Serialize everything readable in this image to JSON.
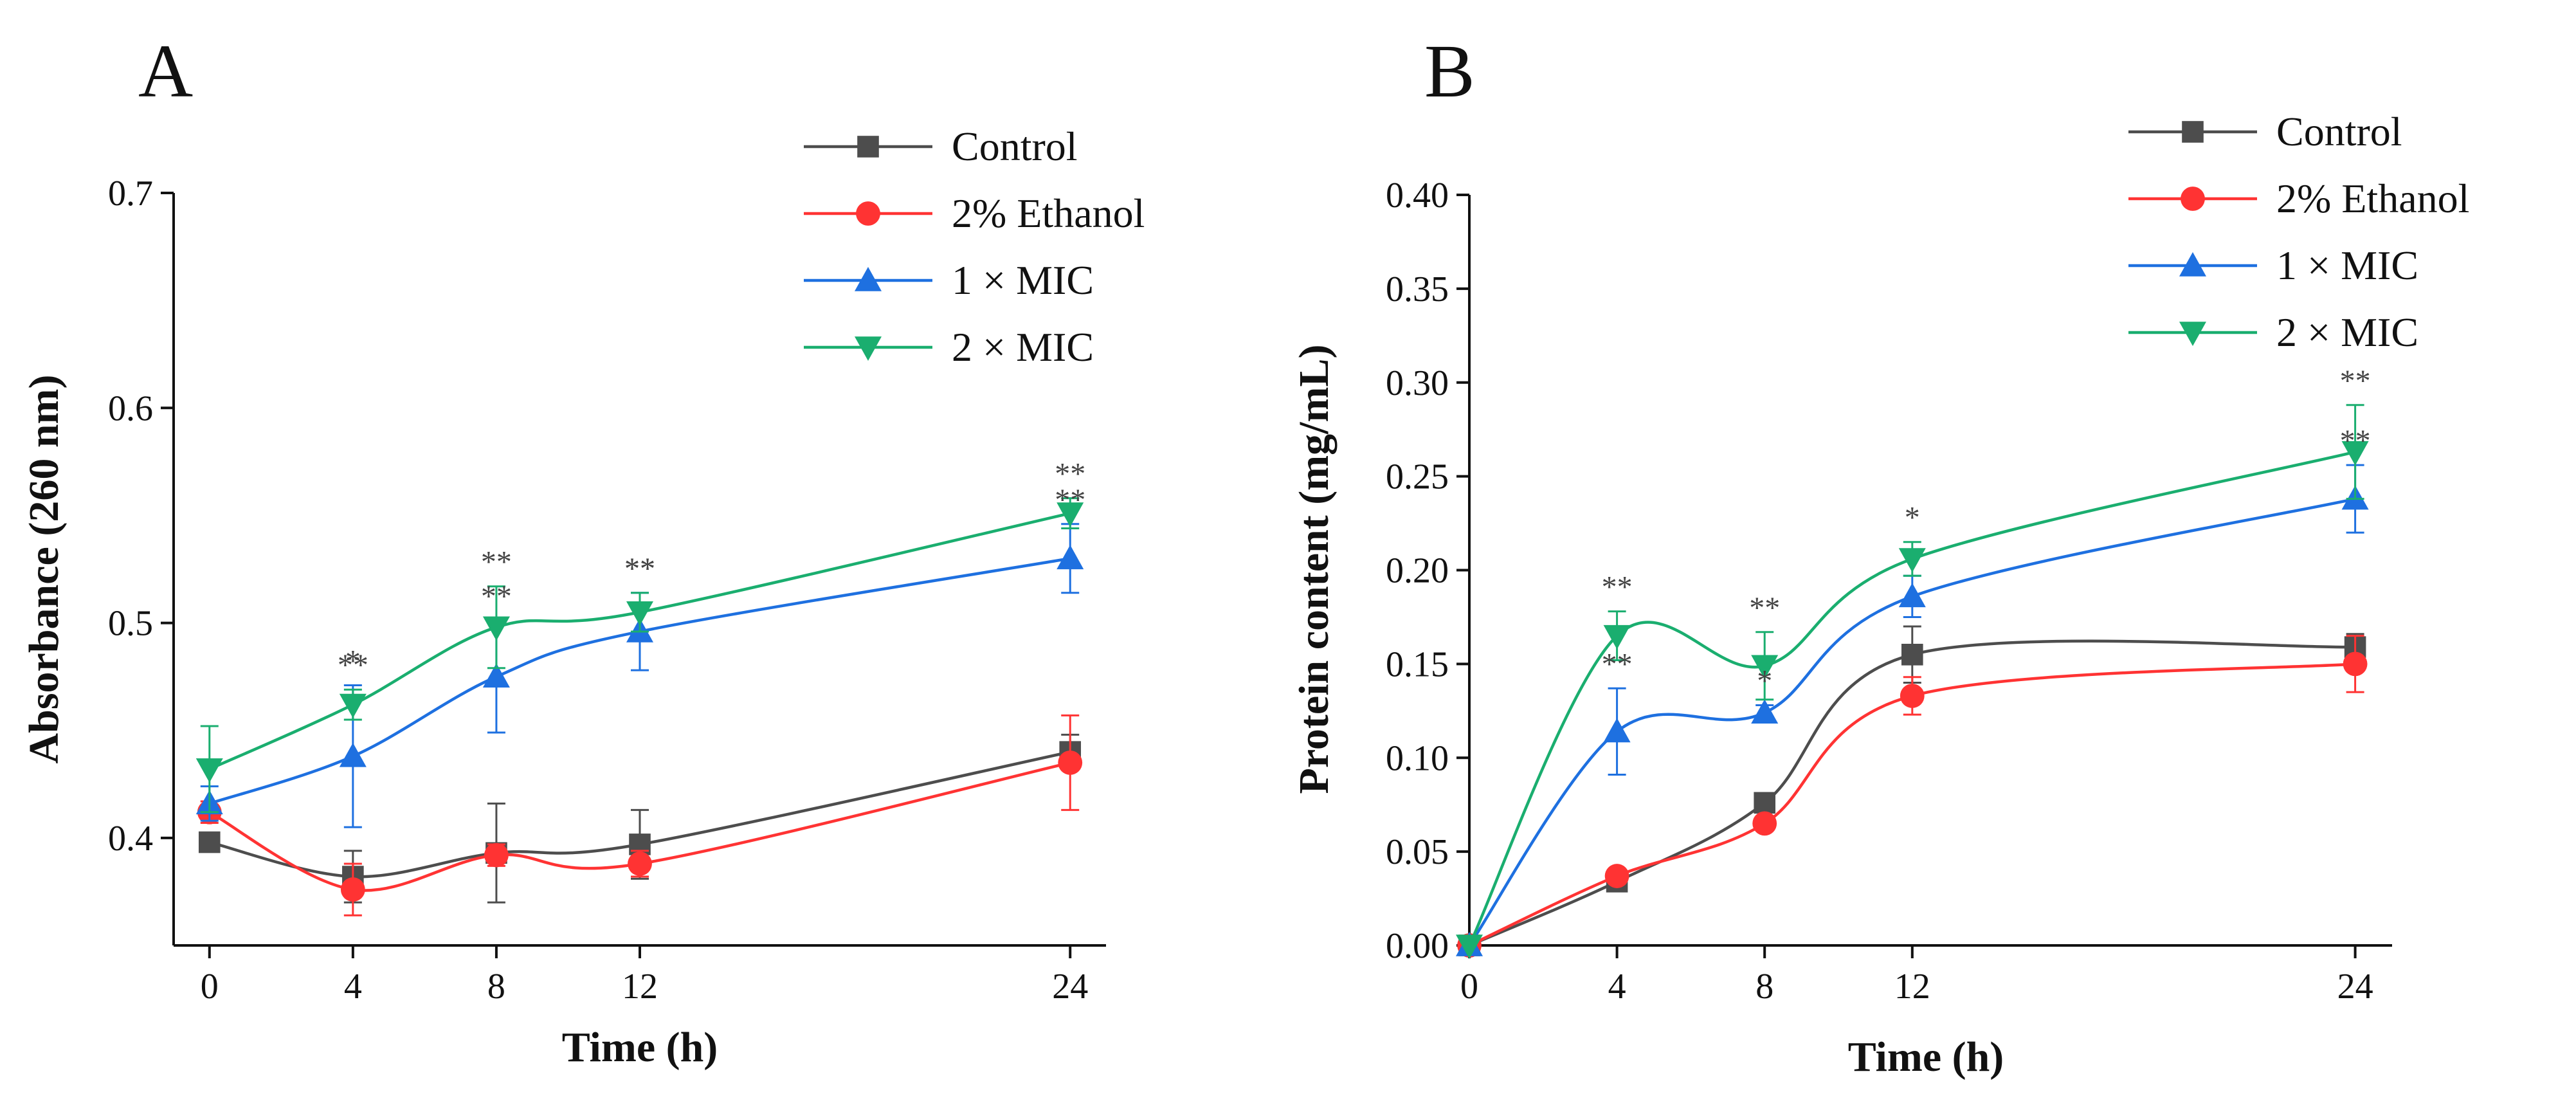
{
  "chart_data": [
    {
      "type": "line",
      "panel_label": "A",
      "xlabel": "Time (h)",
      "ylabel": "Absorbance (260 nm)",
      "x": [
        0,
        4,
        8,
        12,
        24
      ],
      "xlim": [
        -1,
        25
      ],
      "ylim": [
        0.35,
        0.7
      ],
      "xticks": [
        0,
        4,
        8,
        12,
        24
      ],
      "yticks": [
        0.4,
        0.5,
        0.6,
        0.7
      ],
      "ytick_labels": [
        "0.4",
        "0.5",
        "0.6",
        "0.7"
      ],
      "legend_position": "top-right",
      "series": [
        {
          "name": "Control",
          "color": "#4d4d4d",
          "marker": "square",
          "values": [
            0.398,
            0.382,
            0.393,
            0.397,
            0.44
          ],
          "errors": [
            0.004,
            0.012,
            0.023,
            0.016,
            0.008
          ]
        },
        {
          "name": "2% Ethanol",
          "color": "#ff3333",
          "marker": "circle",
          "values": [
            0.412,
            0.376,
            0.392,
            0.388,
            0.435
          ],
          "errors": [
            0.005,
            0.012,
            0.005,
            0.006,
            0.022
          ]
        },
        {
          "name": "1 × MIC",
          "color": "#1e70e0",
          "marker": "triangle-up",
          "values": [
            0.416,
            0.438,
            0.475,
            0.496,
            0.53
          ],
          "errors": [
            0.008,
            0.033,
            0.026,
            0.018,
            0.016
          ]
        },
        {
          "name": "2 × MIC",
          "color": "#1aae6f",
          "marker": "triangle-down",
          "values": [
            0.432,
            0.462,
            0.498,
            0.505,
            0.551
          ],
          "errors": [
            0.02,
            0.007,
            0.019,
            0.009,
            0.007
          ]
        }
      ],
      "annotations": [
        {
          "text": "**",
          "x": 4,
          "series": "2 × MIC"
        },
        {
          "text": "*",
          "x": 4,
          "series": "1 × MIC"
        },
        {
          "text": "**",
          "x": 8,
          "series": "2 × MIC"
        },
        {
          "text": "**",
          "x": 8,
          "series": "1 × MIC"
        },
        {
          "text": "**",
          "x": 12,
          "series": "2 × MIC"
        },
        {
          "text": "**",
          "x": 12,
          "series": "1 × MIC"
        },
        {
          "text": "**",
          "x": 24,
          "series": "2 × MIC"
        },
        {
          "text": "**",
          "x": 24,
          "series": "1 × MIC"
        }
      ]
    },
    {
      "type": "line",
      "panel_label": "B",
      "xlabel": "Time (h)",
      "ylabel": "Protein content (mg/mL)",
      "x": [
        0,
        4,
        8,
        12,
        24
      ],
      "xlim": [
        0,
        25
      ],
      "ylim": [
        0,
        0.4
      ],
      "xticks": [
        0,
        4,
        8,
        12,
        24
      ],
      "yticks": [
        0,
        0.05,
        0.1,
        0.15,
        0.2,
        0.25,
        0.3,
        0.35,
        0.4
      ],
      "ytick_labels": [
        "0.00",
        "0.05",
        "0.10",
        "0.15",
        "0.20",
        "0.25",
        "0.30",
        "0.35",
        "0.40"
      ],
      "legend_position": "top-right",
      "series": [
        {
          "name": "Control",
          "color": "#4d4d4d",
          "marker": "square",
          "values": [
            0.0,
            0.034,
            0.076,
            0.155,
            0.159
          ],
          "errors": [
            0.0,
            0.003,
            0.003,
            0.015,
            0.007
          ]
        },
        {
          "name": "2% Ethanol",
          "color": "#ff3333",
          "marker": "circle",
          "values": [
            0.0,
            0.037,
            0.065,
            0.133,
            0.15
          ],
          "errors": [
            0.0,
            0.003,
            0.003,
            0.01,
            0.015
          ]
        },
        {
          "name": "1 × MIC",
          "color": "#1e70e0",
          "marker": "triangle-up",
          "values": [
            0.0,
            0.114,
            0.124,
            0.186,
            0.238
          ],
          "errors": [
            0.0,
            0.023,
            0.004,
            0.011,
            0.018
          ]
        },
        {
          "name": "2 × MIC",
          "color": "#1aae6f",
          "marker": "triangle-down",
          "values": [
            0.0,
            0.165,
            0.149,
            0.206,
            0.263
          ],
          "errors": [
            0.0,
            0.013,
            0.018,
            0.009,
            0.025
          ]
        }
      ],
      "annotations": [
        {
          "text": "**",
          "x": 4,
          "series": "2 × MIC"
        },
        {
          "text": "**",
          "x": 4,
          "series": "1 × MIC"
        },
        {
          "text": "**",
          "x": 8,
          "series": "2 × MIC"
        },
        {
          "text": "*",
          "x": 8,
          "series": "1 × MIC"
        },
        {
          "text": "*",
          "x": 12,
          "series": "2 × MIC"
        },
        {
          "text": "**",
          "x": 24,
          "series": "2 × MIC"
        },
        {
          "text": "**",
          "x": 24,
          "series": "1 × MIC"
        }
      ]
    }
  ]
}
